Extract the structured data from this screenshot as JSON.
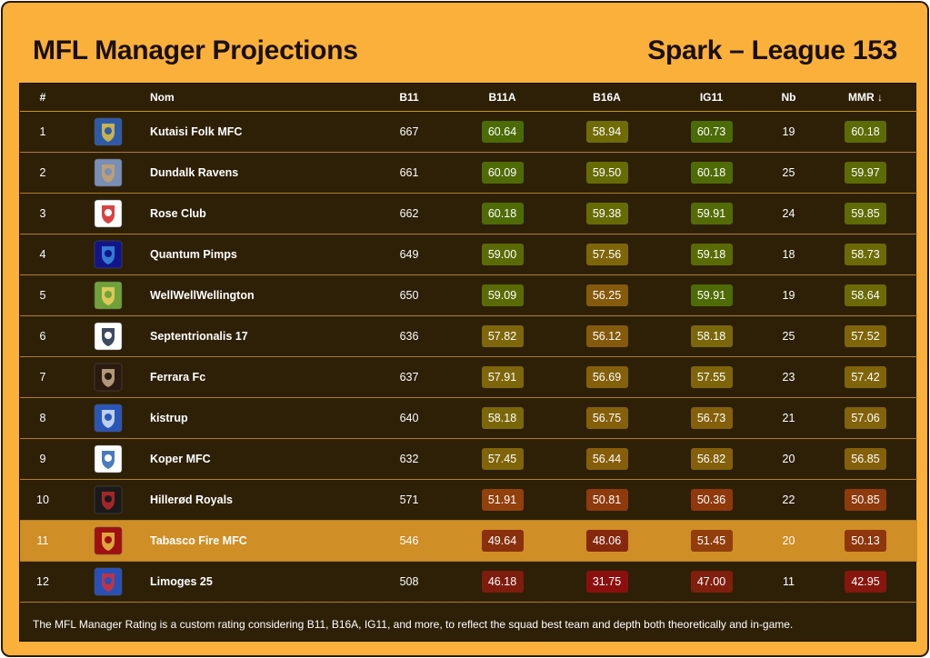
{
  "header": {
    "title": "MFL Manager Projections",
    "league": "Spark – League 153"
  },
  "columns": {
    "rank": "#",
    "name": "Nom",
    "b11": "B11",
    "b11a": "B11A",
    "b16a": "B16A",
    "ig11": "IG11",
    "nb": "Nb",
    "mmr": "MMR ↓"
  },
  "highlight_row": 11,
  "rows": [
    {
      "rank": "1",
      "name": "Kutaisi Folk MFC",
      "b11": "667",
      "b11a": "60.64",
      "b16a": "58.94",
      "ig11": "60.73",
      "nb": "19",
      "mmr": "60.18",
      "crest": "kutaisi-crest-icon",
      "c": {
        "b11a": "#4a6b06",
        "b16a": "#6f6c08",
        "ig11": "#4a6b06",
        "mmr": "#5c6b06"
      }
    },
    {
      "rank": "2",
      "name": "Dundalk Ravens",
      "b11": "661",
      "b11a": "60.09",
      "b16a": "59.50",
      "ig11": "60.18",
      "nb": "25",
      "mmr": "59.97",
      "crest": "dundalk-crest-icon",
      "c": {
        "b11a": "#4e6b06",
        "b16a": "#676b06",
        "ig11": "#4e6b06",
        "mmr": "#5c6b06"
      }
    },
    {
      "rank": "3",
      "name": "Rose Club",
      "b11": "662",
      "b11a": "60.18",
      "b16a": "59.38",
      "ig11": "59.91",
      "nb": "24",
      "mmr": "59.85",
      "crest": "rose-club-crest-icon",
      "c": {
        "b11a": "#4e6b06",
        "b16a": "#676b06",
        "ig11": "#526b06",
        "mmr": "#5e6b06"
      }
    },
    {
      "rank": "4",
      "name": "Quantum Pimps",
      "b11": "649",
      "b11a": "59.00",
      "b16a": "57.56",
      "ig11": "59.18",
      "nb": "18",
      "mmr": "58.73",
      "crest": "quantum-pimps-crest-icon",
      "c": {
        "b11a": "#5a6b06",
        "b16a": "#7e650a",
        "ig11": "#5a6b06",
        "mmr": "#6b6a07"
      }
    },
    {
      "rank": "5",
      "name": "WellWellWellington",
      "b11": "650",
      "b11a": "59.09",
      "b16a": "56.25",
      "ig11": "59.91",
      "nb": "19",
      "mmr": "58.64",
      "crest": "wellington-crest-icon",
      "c": {
        "b11a": "#5a6b06",
        "b16a": "#865a0c",
        "ig11": "#4e6b06",
        "mmr": "#6b6a07"
      }
    },
    {
      "rank": "6",
      "name": "Septentrionalis 17",
      "b11": "636",
      "b11a": "57.82",
      "b16a": "56.12",
      "ig11": "58.18",
      "nb": "25",
      "mmr": "57.52",
      "crest": "septentrionalis-crest-icon",
      "c": {
        "b11a": "#7e660a",
        "b16a": "#865a0c",
        "ig11": "#7a670a",
        "mmr": "#806409"
      }
    },
    {
      "rank": "7",
      "name": "Ferrara Fc",
      "b11": "637",
      "b11a": "57.91",
      "b16a": "56.69",
      "ig11": "57.55",
      "nb": "23",
      "mmr": "57.42",
      "crest": "ferrara-crest-icon",
      "c": {
        "b11a": "#7e660a",
        "b16a": "#84600b",
        "ig11": "#7e650a",
        "mmr": "#806409"
      }
    },
    {
      "rank": "8",
      "name": "kistrup",
      "b11": "640",
      "b11a": "58.18",
      "b16a": "56.75",
      "ig11": "56.73",
      "nb": "21",
      "mmr": "57.06",
      "crest": "kistrup-crest-icon",
      "c": {
        "b11a": "#7a670a",
        "b16a": "#84600b",
        "ig11": "#84600b",
        "mmr": "#82620a"
      }
    },
    {
      "rank": "9",
      "name": "Koper MFC",
      "b11": "632",
      "b11a": "57.45",
      "b16a": "56.44",
      "ig11": "56.82",
      "nb": "20",
      "mmr": "56.85",
      "crest": "koper-crest-icon",
      "c": {
        "b11a": "#80640a",
        "b16a": "#865e0b",
        "ig11": "#84600b",
        "mmr": "#84600b"
      }
    },
    {
      "rank": "10",
      "name": "Hillerød Royals",
      "b11": "571",
      "b11a": "51.91",
      "b16a": "50.81",
      "ig11": "50.36",
      "nb": "22",
      "mmr": "50.85",
      "crest": "hillerod-crest-icon",
      "c": {
        "b11a": "#92400c",
        "b16a": "#8f3a0c",
        "ig11": "#8f380c",
        "mmr": "#8f3a0c"
      }
    },
    {
      "rank": "11",
      "name": "Tabasco Fire MFC",
      "b11": "546",
      "b11a": "49.64",
      "b16a": "48.06",
      "ig11": "51.45",
      "nb": "20",
      "mmr": "50.13",
      "crest": "tabasco-crest-icon",
      "c": {
        "b11a": "#8a300c",
        "b16a": "#86280d",
        "ig11": "#923e0c",
        "mmr": "#8f360c"
      }
    },
    {
      "rank": "12",
      "name": "Limoges 25",
      "b11": "508",
      "b11a": "46.18",
      "b16a": "31.75",
      "ig11": "47.00",
      "nb": "11",
      "mmr": "42.95",
      "crest": "limoges-crest-icon",
      "c": {
        "b11a": "#7e1c0d",
        "b16a": "#8c0f10",
        "ig11": "#801f0d",
        "mmr": "#86160e"
      }
    }
  ],
  "footnote": "The MFL Manager Rating is a custom rating considering B11, B16A, IG11, and more, to reflect the squad best team and depth both theoretically and in-game."
}
